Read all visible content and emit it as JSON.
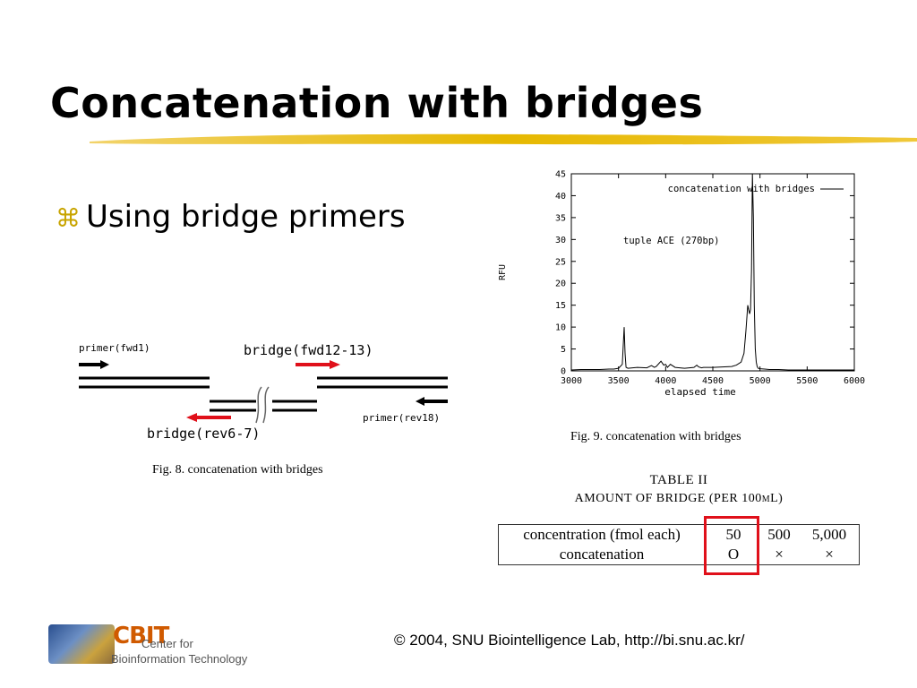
{
  "slide": {
    "title": "Concatenation with bridges",
    "bullet_icon": "command-icon",
    "bullet": "Using bridge primers"
  },
  "figure8": {
    "label_fwd1": "primer(fwd1)",
    "label_fwd12_13": "bridge(fwd12-13)",
    "label_rev18": "primer(rev18)",
    "label_rev6_7": "bridge(rev6-7)",
    "caption": "Fig. 8.   concatenation with bridges",
    "accent_color": "#e0101a"
  },
  "figure9": {
    "caption": "Fig. 9.   concatenation with bridges"
  },
  "chart_data": {
    "type": "line",
    "title": "",
    "xlabel": "elapsed time",
    "ylabel": "RFU",
    "xlim": [
      3000,
      6000
    ],
    "ylim": [
      0,
      45
    ],
    "xticks": [
      3000,
      3500,
      4000,
      4500,
      5000,
      5500,
      6000
    ],
    "yticks": [
      0,
      5,
      10,
      15,
      20,
      25,
      30,
      35,
      40,
      45
    ],
    "legend": "concatenation with bridges",
    "legend_position": "top-right",
    "annotation": "tuple ACE (270bp)",
    "grid": false,
    "series": [
      {
        "name": "concatenation with bridges",
        "x": [
          3000,
          3100,
          3200,
          3300,
          3400,
          3450,
          3500,
          3540,
          3560,
          3570,
          3580,
          3600,
          3700,
          3800,
          3850,
          3880,
          3900,
          3950,
          3980,
          4000,
          4020,
          4050,
          4100,
          4150,
          4200,
          4300,
          4330,
          4350,
          4380,
          4400,
          4500,
          4600,
          4700,
          4750,
          4800,
          4830,
          4850,
          4870,
          4880,
          4890,
          4900,
          4910,
          4920,
          4930,
          4940,
          4950,
          4960,
          4970,
          4980,
          5000,
          5050,
          5100,
          5200,
          5300,
          5400,
          5500,
          5600,
          5700,
          5800,
          5900,
          6000
        ],
        "y": [
          0.2,
          0.3,
          0.3,
          0.3,
          0.4,
          0.4,
          0.6,
          1.5,
          10,
          4,
          0.8,
          0.6,
          0.8,
          0.7,
          1.2,
          0.8,
          1.0,
          2.2,
          1.3,
          1.5,
          0.8,
          1.5,
          0.8,
          0.7,
          0.6,
          0.8,
          1.3,
          0.9,
          0.7,
          0.8,
          0.8,
          0.9,
          1.0,
          1.3,
          2,
          4,
          9,
          15,
          14,
          13,
          14,
          23,
          45,
          35,
          15,
          5,
          2,
          1,
          0.6,
          0.5,
          0.4,
          0.3,
          0.3,
          0.2,
          0.2,
          0.2,
          0.2,
          0.2,
          0.2,
          0.2,
          0.2
        ]
      }
    ]
  },
  "table2": {
    "caption1": "TABLE II",
    "caption2": "AMOUNT OF BRIDGE (PER 100μL)",
    "rows": [
      {
        "header": "concentration (fmol each)",
        "c1": "50",
        "c2": "500",
        "c3": "5,000"
      },
      {
        "header": "concatenation",
        "c1": "O",
        "c2": "×",
        "c3": "×"
      }
    ],
    "highlight_color": "#e0101a"
  },
  "footer": {
    "copyright": "© 2004, SNU Biointelligence Lab, http://bi.snu.ac.kr/"
  },
  "logo": {
    "text_cbit": "CBIT",
    "line1": "Center for",
    "line2": "Bioinformation Technology"
  }
}
